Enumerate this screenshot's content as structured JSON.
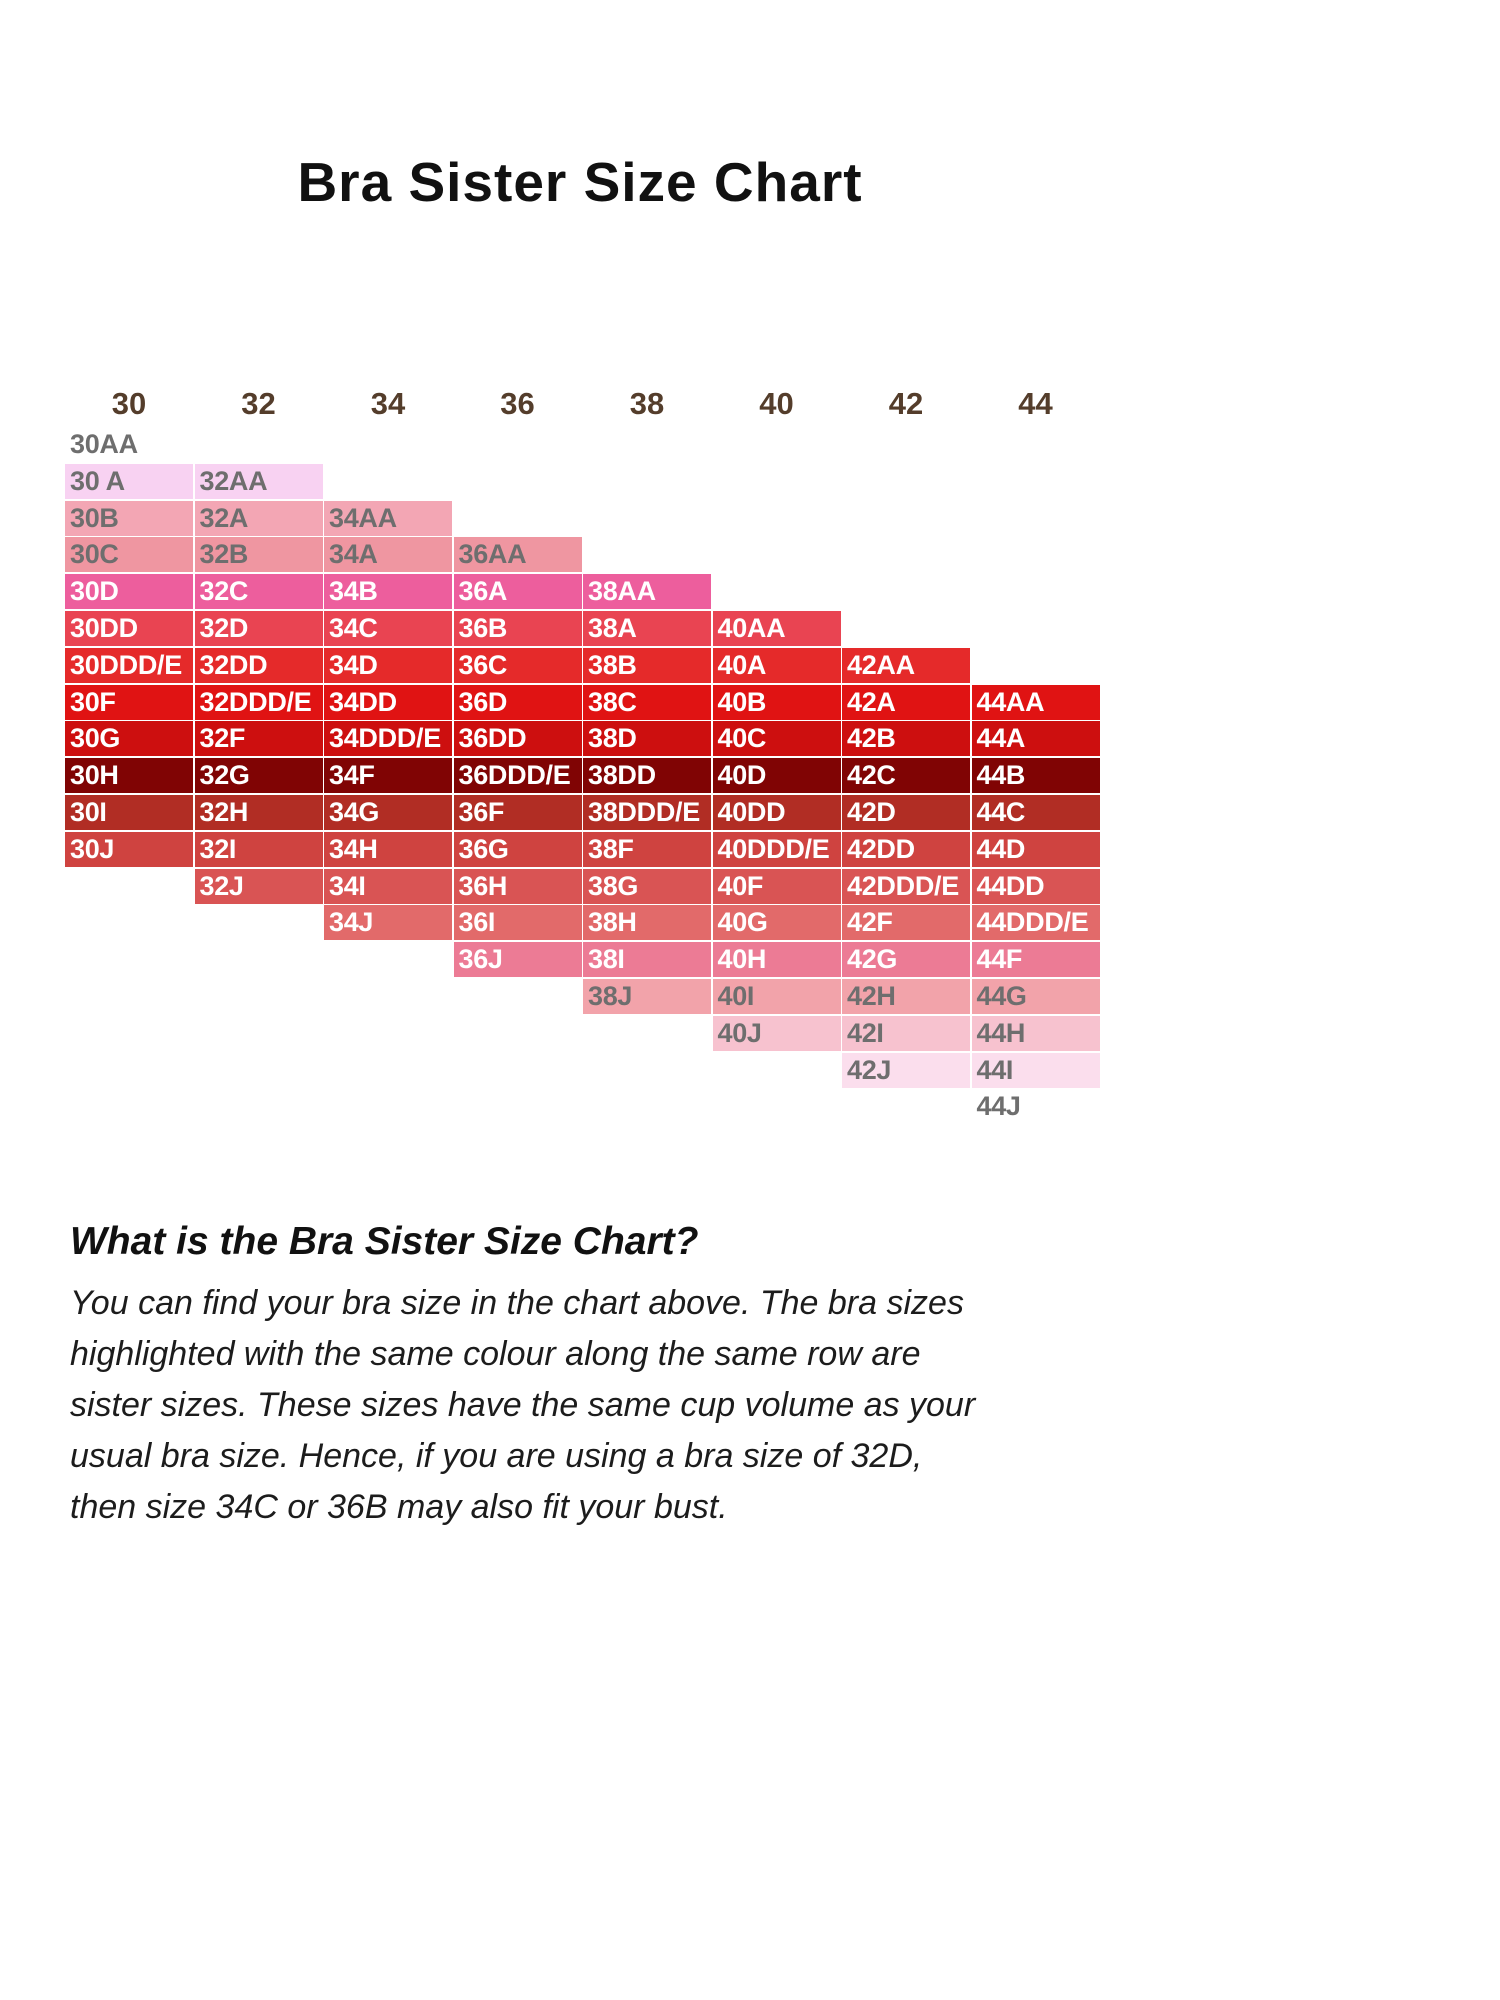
{
  "chart_data": {
    "type": "table",
    "title": "Bra Sister Size Chart",
    "band_headers": [
      "30",
      "32",
      "34",
      "36",
      "38",
      "40",
      "42",
      "44"
    ],
    "rows": [
      {
        "bg": "#ffffff",
        "fg": "#6e6e6e",
        "cells": [
          {
            "col": 0,
            "label": "30AA"
          }
        ]
      },
      {
        "bg": "#f8d2f2",
        "fg": "#6e6e6e",
        "cells": [
          {
            "col": 0,
            "label": "30 A"
          },
          {
            "col": 1,
            "label": "32AA"
          }
        ]
      },
      {
        "bg": "#f3a6b4",
        "fg": "#6e6e6e",
        "cells": [
          {
            "col": 0,
            "label": "30B"
          },
          {
            "col": 1,
            "label": "32A"
          },
          {
            "col": 2,
            "label": "34AA"
          }
        ]
      },
      {
        "bg": "#ef96a1",
        "fg": "#6e6e6e",
        "cells": [
          {
            "col": 0,
            "label": "30C"
          },
          {
            "col": 1,
            "label": "32B"
          },
          {
            "col": 2,
            "label": "34A"
          },
          {
            "col": 3,
            "label": "36AA"
          }
        ]
      },
      {
        "bg": "#ed5e9d",
        "fg": "#ffffff",
        "cells": [
          {
            "col": 0,
            "label": "30D"
          },
          {
            "col": 1,
            "label": "32C"
          },
          {
            "col": 2,
            "label": "34B"
          },
          {
            "col": 3,
            "label": "36A"
          },
          {
            "col": 4,
            "label": "38AA"
          }
        ]
      },
      {
        "bg": "#e94452",
        "fg": "#ffffff",
        "cells": [
          {
            "col": 0,
            "label": "30DD"
          },
          {
            "col": 1,
            "label": "32D"
          },
          {
            "col": 2,
            "label": "34C"
          },
          {
            "col": 3,
            "label": "36B"
          },
          {
            "col": 4,
            "label": "38A"
          },
          {
            "col": 5,
            "label": "40AA"
          }
        ]
      },
      {
        "bg": "#e52a2a",
        "fg": "#ffffff",
        "cells": [
          {
            "col": 0,
            "label": "30DDD/E"
          },
          {
            "col": 1,
            "label": "32DD"
          },
          {
            "col": 2,
            "label": "34D"
          },
          {
            "col": 3,
            "label": "36C"
          },
          {
            "col": 4,
            "label": "38B"
          },
          {
            "col": 5,
            "label": "40A"
          },
          {
            "col": 6,
            "label": "42AA"
          }
        ]
      },
      {
        "bg": "#e01313",
        "fg": "#ffffff",
        "cells": [
          {
            "col": 0,
            "label": "30F"
          },
          {
            "col": 1,
            "label": "32DDD/E"
          },
          {
            "col": 2,
            "label": "34DD"
          },
          {
            "col": 3,
            "label": "36D"
          },
          {
            "col": 4,
            "label": "38C"
          },
          {
            "col": 5,
            "label": "40B"
          },
          {
            "col": 6,
            "label": "42A"
          },
          {
            "col": 7,
            "label": "44AA"
          }
        ]
      },
      {
        "bg": "#cd0f0f",
        "fg": "#ffffff",
        "cells": [
          {
            "col": 0,
            "label": "30G"
          },
          {
            "col": 1,
            "label": "32F"
          },
          {
            "col": 2,
            "label": "34DDD/E"
          },
          {
            "col": 3,
            "label": "36DD"
          },
          {
            "col": 4,
            "label": "38D"
          },
          {
            "col": 5,
            "label": "40C"
          },
          {
            "col": 6,
            "label": "42B"
          },
          {
            "col": 7,
            "label": "44A"
          }
        ]
      },
      {
        "bg": "#800404",
        "fg": "#ffffff",
        "cells": [
          {
            "col": 0,
            "label": "30H"
          },
          {
            "col": 1,
            "label": "32G"
          },
          {
            "col": 2,
            "label": "34F"
          },
          {
            "col": 3,
            "label": "36DDD/E"
          },
          {
            "col": 4,
            "label": "38DD"
          },
          {
            "col": 5,
            "label": "40D"
          },
          {
            "col": 6,
            "label": "42C"
          },
          {
            "col": 7,
            "label": "44B"
          }
        ]
      },
      {
        "bg": "#b12d24",
        "fg": "#ffffff",
        "cells": [
          {
            "col": 0,
            "label": "30I"
          },
          {
            "col": 1,
            "label": "32H"
          },
          {
            "col": 2,
            "label": "34G"
          },
          {
            "col": 3,
            "label": "36F"
          },
          {
            "col": 4,
            "label": "38DDD/E"
          },
          {
            "col": 5,
            "label": "40DD"
          },
          {
            "col": 6,
            "label": "42D"
          },
          {
            "col": 7,
            "label": "44C"
          }
        ]
      },
      {
        "bg": "#cf4340",
        "fg": "#ffffff",
        "cells": [
          {
            "col": 0,
            "label": "30J"
          },
          {
            "col": 1,
            "label": "32I"
          },
          {
            "col": 2,
            "label": "34H"
          },
          {
            "col": 3,
            "label": "36G"
          },
          {
            "col": 4,
            "label": "38F"
          },
          {
            "col": 5,
            "label": "40DDD/E"
          },
          {
            "col": 6,
            "label": "42DD"
          },
          {
            "col": 7,
            "label": "44D"
          }
        ]
      },
      {
        "bg": "#d95454",
        "fg": "#ffffff",
        "cells": [
          {
            "col": 1,
            "label": "32J"
          },
          {
            "col": 2,
            "label": "34I"
          },
          {
            "col": 3,
            "label": "36H"
          },
          {
            "col": 4,
            "label": "38G"
          },
          {
            "col": 5,
            "label": "40F"
          },
          {
            "col": 6,
            "label": "42DDD/E"
          },
          {
            "col": 7,
            "label": "44DD"
          }
        ]
      },
      {
        "bg": "#e26a6a",
        "fg": "#ffffff",
        "cells": [
          {
            "col": 2,
            "label": "34J"
          },
          {
            "col": 3,
            "label": "36I"
          },
          {
            "col": 4,
            "label": "38H"
          },
          {
            "col": 5,
            "label": "40G"
          },
          {
            "col": 6,
            "label": "42F"
          },
          {
            "col": 7,
            "label": "44DDD/E"
          }
        ]
      },
      {
        "bg": "#ec7b95",
        "fg": "#ffffff",
        "cells": [
          {
            "col": 3,
            "label": "36J"
          },
          {
            "col": 4,
            "label": "38I"
          },
          {
            "col": 5,
            "label": "40H"
          },
          {
            "col": 6,
            "label": "42G"
          },
          {
            "col": 7,
            "label": "44F"
          }
        ]
      },
      {
        "bg": "#f2a3aa",
        "fg": "#6e6e6e",
        "cells": [
          {
            "col": 4,
            "label": "38J"
          },
          {
            "col": 5,
            "label": "40I"
          },
          {
            "col": 6,
            "label": "42H"
          },
          {
            "col": 7,
            "label": "44G"
          }
        ]
      },
      {
        "bg": "#f7c2cf",
        "fg": "#6e6e6e",
        "cells": [
          {
            "col": 5,
            "label": "40J"
          },
          {
            "col": 6,
            "label": "42I"
          },
          {
            "col": 7,
            "label": "44H"
          }
        ]
      },
      {
        "bg": "#fbdeed",
        "fg": "#6e6e6e",
        "cells": [
          {
            "col": 6,
            "label": "42J"
          },
          {
            "col": 7,
            "label": "44I"
          }
        ]
      },
      {
        "bg": "#ffffff",
        "fg": "#6e6e6e",
        "cells": [
          {
            "col": 7,
            "label": "44J"
          }
        ]
      }
    ]
  },
  "info": {
    "heading": "What is the Bra Sister Size Chart?",
    "lines": [
      "You can find your bra size in the chart above. The bra sizes",
      "highlighted with the same colour along the same row are",
      "sister sizes. These sizes have the same cup volume as your",
      "usual bra size. Hence, if you are using a bra size of 32D,",
      "then size 34C or 36B may also fit your bust."
    ]
  }
}
